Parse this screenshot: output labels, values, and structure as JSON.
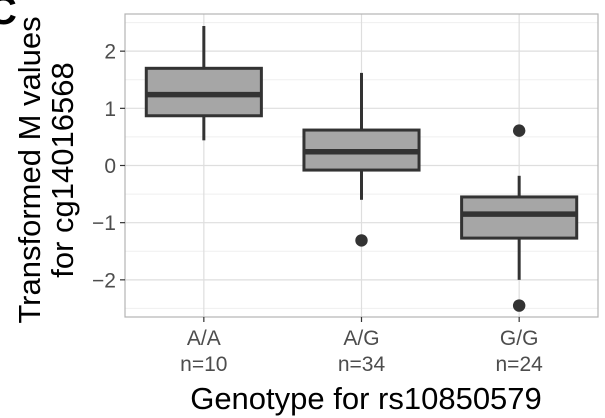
{
  "panel_letter": "C",
  "chart_data": {
    "type": "box",
    "xlabel": "Genotype for rs10850579",
    "ylabel": [
      "Transformed M values",
      "for cg14016568"
    ],
    "ylim": [
      -2.65,
      2.65
    ],
    "yticks": [
      -2,
      -1,
      0,
      1,
      2
    ],
    "ytick_labels": [
      "−2",
      "−1",
      "0",
      "1",
      "2"
    ],
    "y_minor_ticks": [
      -2.5,
      -1.5,
      -0.5,
      0.5,
      1.5,
      2.5
    ],
    "grid": true,
    "categories": [
      {
        "label": "A/A",
        "n_label": "n=10"
      },
      {
        "label": "A/G",
        "n_label": "n=34"
      },
      {
        "label": "G/G",
        "n_label": "n=24"
      }
    ],
    "boxes": [
      {
        "q1": 0.87,
        "median": 1.24,
        "q3": 1.7,
        "whisker_low": 0.44,
        "whisker_high": 2.44,
        "outliers": []
      },
      {
        "q1": -0.08,
        "median": 0.24,
        "q3": 0.62,
        "whisker_low": -0.6,
        "whisker_high": 1.62,
        "outliers": [
          -1.31
        ]
      },
      {
        "q1": -1.27,
        "median": -0.85,
        "q3": -0.55,
        "whisker_low": -2.0,
        "whisker_high": -0.18,
        "outliers": [
          0.61,
          -2.45
        ]
      }
    ],
    "box_fill": "#a6a6a6",
    "line_color": "#333333",
    "grid_major_color": "#dedede",
    "grid_minor_color": "#efefef",
    "panel_border_color": "#b3b3b3"
  }
}
